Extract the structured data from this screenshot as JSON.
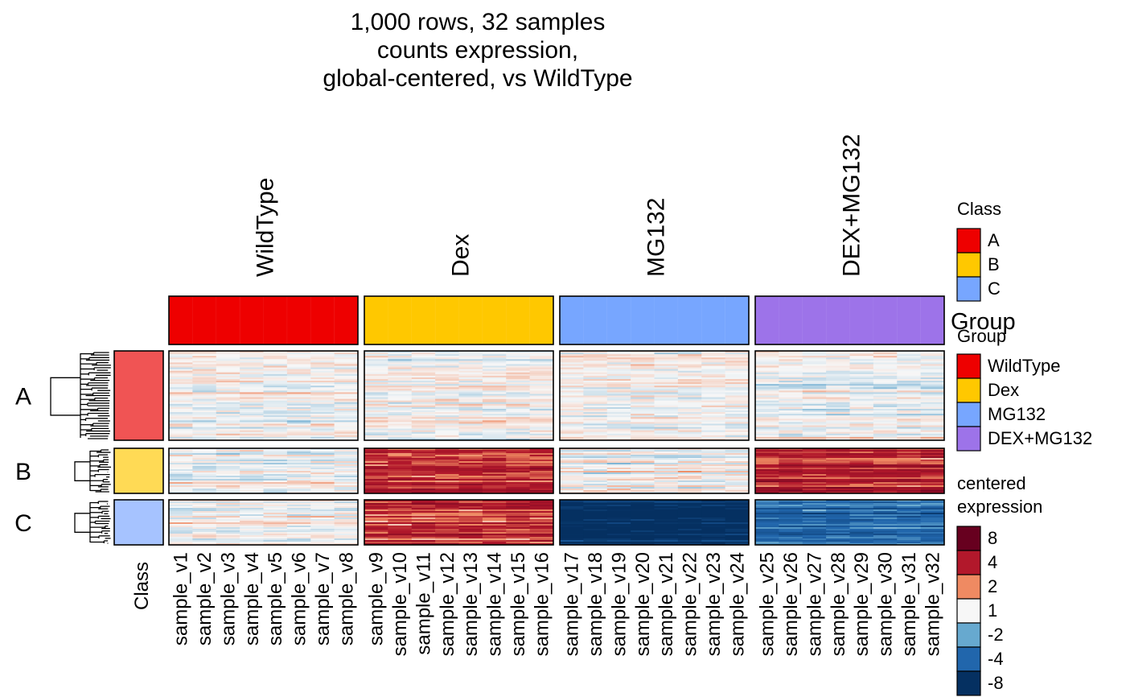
{
  "title": [
    "1,000 rows, 32 samples",
    "counts expression,",
    "global-centered, vs WildType"
  ],
  "colors": {
    "WildType": "#EE0000",
    "Dex": "#FFC800",
    "MG132": "#77A6FF",
    "DEX+MG132": "#9D73E9",
    "classA": "#F05454",
    "classB": "#FFDA55",
    "classC": "#A6C3FF"
  },
  "chart_data": {
    "type": "heatmap",
    "rows": 1000,
    "samples": 32,
    "column_groups": [
      "WildType",
      "Dex",
      "MG132",
      "DEX+MG132"
    ],
    "row_groups": [
      "A",
      "B",
      "C"
    ],
    "row_annotation_label": "Class",
    "samples_by_group": [
      [
        "sample_v1",
        "sample_v2",
        "sample_v3",
        "sample_v4",
        "sample_v5",
        "sample_v6",
        "sample_v7",
        "sample_v8"
      ],
      [
        "sample_v9",
        "sample_v10",
        "sample_v11",
        "sample_v12",
        "sample_v13",
        "sample_v14",
        "sample_v15",
        "sample_v16"
      ],
      [
        "sample_v17",
        "sample_v18",
        "sample_v19",
        "sample_v20",
        "sample_v21",
        "sample_v22",
        "sample_v23",
        "sample_v24"
      ],
      [
        "sample_v25",
        "sample_v26",
        "sample_v27",
        "sample_v28",
        "sample_v29",
        "sample_v30",
        "sample_v31",
        "sample_v32"
      ]
    ],
    "block_mean_expression": {
      "A": [
        0,
        0,
        0,
        0
      ],
      "B": [
        0,
        4,
        0,
        4
      ],
      "C": [
        0,
        4,
        -8,
        -4
      ]
    },
    "legend_class": {
      "title": "Class",
      "items": [
        {
          "label": "A",
          "color": "#EE0000"
        },
        {
          "label": "B",
          "color": "#FFC800"
        },
        {
          "label": "C",
          "color": "#77A6FF"
        }
      ]
    },
    "legend_group": {
      "title": "Group",
      "items": [
        {
          "label": "WildType",
          "color": "#EE0000"
        },
        {
          "label": "Dex",
          "color": "#FFC800"
        },
        {
          "label": "MG132",
          "color": "#77A6FF"
        },
        {
          "label": "DEX+MG132",
          "color": "#9D73E9"
        }
      ]
    },
    "legend_expression": {
      "title": [
        "centered",
        "expression"
      ],
      "items": [
        {
          "label": "8",
          "color": "#67001F"
        },
        {
          "label": "4",
          "color": "#B2182B"
        },
        {
          "label": "2",
          "color": "#EF8A62"
        },
        {
          "label": "1",
          "color": "#F7F7F7"
        },
        {
          "label": "-2",
          "color": "#67A9CF"
        },
        {
          "label": "-4",
          "color": "#2166AC"
        },
        {
          "label": "-8",
          "color": "#053061"
        }
      ]
    }
  }
}
